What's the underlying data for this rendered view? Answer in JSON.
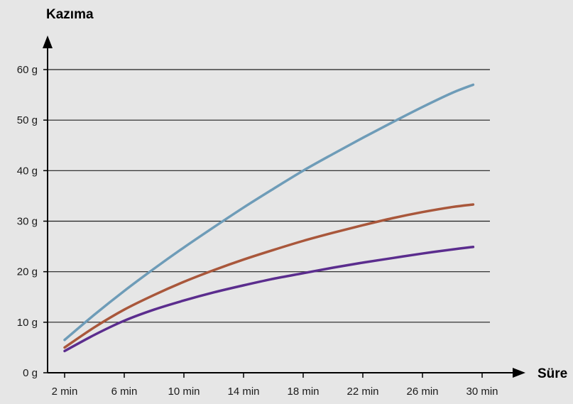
{
  "chart_data": {
    "type": "line",
    "title": "",
    "xlabel": "Süre",
    "ylabel": "Kazıma",
    "x_ticks": [
      {
        "value": 2,
        "label": "2 min"
      },
      {
        "value": 6,
        "label": "6 min"
      },
      {
        "value": 10,
        "label": "10 min"
      },
      {
        "value": 14,
        "label": "14 min"
      },
      {
        "value": 18,
        "label": "18 min"
      },
      {
        "value": 22,
        "label": "22 min"
      },
      {
        "value": 26,
        "label": "26 min"
      },
      {
        "value": 30,
        "label": "30 min"
      }
    ],
    "y_ticks": [
      {
        "value": 0,
        "label": "0 g"
      },
      {
        "value": 10,
        "label": "10 g"
      },
      {
        "value": 20,
        "label": "20 g"
      },
      {
        "value": 30,
        "label": "30 g"
      },
      {
        "value": 40,
        "label": "40 g"
      },
      {
        "value": 50,
        "label": "50 g"
      },
      {
        "value": 60,
        "label": "60 g"
      }
    ],
    "xlim": [
      0.8,
      31.5
    ],
    "ylim": [
      0,
      67
    ],
    "grid": true,
    "legend": "none",
    "series": [
      {
        "color": "#6e9cb8",
        "x": [
          2,
          4,
          6,
          8,
          10,
          12,
          14,
          16,
          18,
          20,
          22,
          24,
          26,
          28,
          29.4
        ],
        "y": [
          6.5,
          11.5,
          16.2,
          20.6,
          24.8,
          28.8,
          32.7,
          36.4,
          40.0,
          43.3,
          46.5,
          49.6,
          52.6,
          55.4,
          57.0
        ]
      },
      {
        "color": "#a9573b",
        "x": [
          2,
          4,
          6,
          8,
          10,
          12,
          14,
          16,
          18,
          20,
          22,
          24,
          26,
          28,
          29.4
        ],
        "y": [
          5.0,
          9.0,
          12.5,
          15.4,
          18.0,
          20.3,
          22.4,
          24.3,
          26.1,
          27.7,
          29.2,
          30.6,
          31.8,
          32.8,
          33.3
        ]
      },
      {
        "color": "#5b2d8e",
        "x": [
          2,
          4,
          6,
          8,
          10,
          12,
          14,
          16,
          18,
          20,
          22,
          24,
          26,
          28,
          29.4
        ],
        "y": [
          4.3,
          7.5,
          10.3,
          12.5,
          14.3,
          15.9,
          17.3,
          18.6,
          19.7,
          20.8,
          21.8,
          22.7,
          23.6,
          24.4,
          24.9
        ]
      }
    ]
  }
}
